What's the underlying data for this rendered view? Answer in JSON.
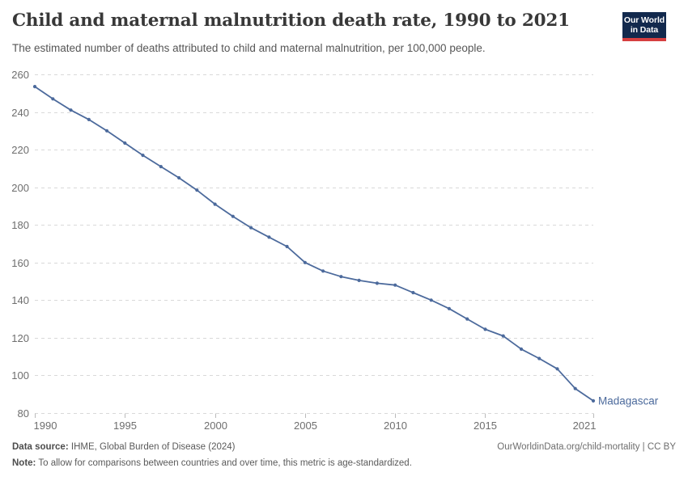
{
  "header": {
    "title": "Child and maternal malnutrition death rate, 1990 to 2021",
    "subtitle": "The estimated number of deaths attributed to child and maternal malnutrition, per 100,000 people.",
    "logo": {
      "line1": "Our World",
      "line2": "in Data"
    }
  },
  "chart_data": {
    "type": "line",
    "title": "Child and maternal malnutrition death rate, 1990 to 2021",
    "xlabel": "",
    "ylabel": "",
    "xlim": [
      1990,
      2021
    ],
    "ylim": [
      80,
      260
    ],
    "y_ticks": [
      80,
      100,
      120,
      140,
      160,
      180,
      200,
      220,
      240,
      260
    ],
    "x_ticks": [
      1990,
      1995,
      2000,
      2005,
      2010,
      2015,
      2021
    ],
    "grid": "horizontal-dashed",
    "legend_position": "end-of-line-label",
    "series": [
      {
        "name": "Madagascar",
        "color": "#4C6A9C",
        "x": [
          1990,
          1991,
          1992,
          1993,
          1994,
          1995,
          1996,
          1997,
          1998,
          1999,
          2000,
          2001,
          2002,
          2003,
          2004,
          2005,
          2006,
          2007,
          2008,
          2009,
          2010,
          2011,
          2012,
          2013,
          2014,
          2015,
          2016,
          2017,
          2018,
          2019,
          2020,
          2021
        ],
        "values": [
          253.5,
          247,
          241,
          236,
          230,
          223.5,
          217,
          211,
          205,
          198.5,
          191,
          184.5,
          178.5,
          173.5,
          168.5,
          160,
          155.5,
          152.5,
          150.5,
          149,
          148,
          144,
          140,
          135.5,
          130,
          124.5,
          121,
          114,
          109,
          103.5,
          93,
          86.5
        ]
      }
    ],
    "entity_label": "Madagascar"
  },
  "colors": {
    "line": "#4C6A9C",
    "grid": "#d9d9d9",
    "tick": "#bbbbbb",
    "axis_text": "#6e6e6e",
    "logo_bg": "#12294d",
    "logo_red": "#d63f40"
  },
  "footer": {
    "source_label": "Data source:",
    "source_text": "IHME, Global Burden of Disease (2024)",
    "link_text": "OurWorldinData.org/child-mortality | CC BY",
    "note_label": "Note:",
    "note_text": "To allow for comparisons between countries and over time, this metric is age-standardized."
  }
}
